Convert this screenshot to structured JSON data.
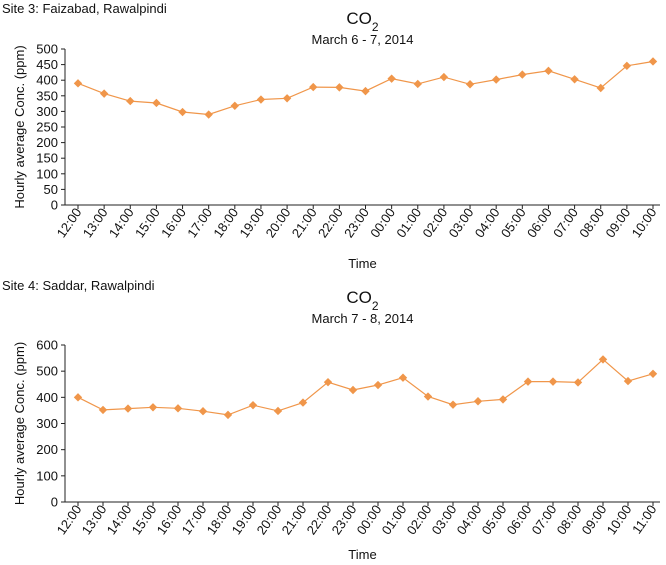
{
  "chart_data": [
    {
      "type": "line",
      "site_label": "Site 3: Faizabad, Rawalpindi",
      "title": "CO",
      "title_subscript": "2",
      "subtitle": "March 6 - 7, 2014",
      "xlabel": "Time",
      "ylabel": "Hourly average Conc. (ppm)",
      "ylim": [
        0,
        500
      ],
      "yticks": [
        0,
        50,
        100,
        150,
        200,
        250,
        300,
        350,
        400,
        450,
        500
      ],
      "grid": false,
      "categories": [
        "12:00",
        "13:00",
        "14:00",
        "15:00",
        "16:00",
        "17:00",
        "18:00",
        "19:00",
        "20:00",
        "21:00",
        "22:00",
        "23:00",
        "00:00",
        "01:00",
        "02:00",
        "03:00",
        "04:00",
        "05:00",
        "06:00",
        "07:00",
        "08:00",
        "09:00",
        "10:00"
      ],
      "series": [
        {
          "values": [
            390,
            357,
            333,
            327,
            298,
            290,
            318,
            338,
            342,
            378,
            377,
            365,
            405,
            388,
            410,
            387,
            402,
            418,
            430,
            403,
            375,
            446,
            460
          ],
          "color": "#F0964A"
        }
      ]
    },
    {
      "type": "line",
      "site_label": "Site 4: Saddar, Rawalpindi",
      "title": "CO",
      "title_subscript": "2",
      "subtitle": "March 7 - 8, 2014",
      "xlabel": "Time",
      "ylabel": "Hourly average Conc. (ppm)",
      "ylim": [
        0,
        600
      ],
      "yticks": [
        0,
        100,
        200,
        300,
        400,
        500,
        600
      ],
      "grid": false,
      "categories": [
        "12:00",
        "13:00",
        "14:00",
        "15:00",
        "16:00",
        "17:00",
        "18:00",
        "19:00",
        "20:00",
        "21:00",
        "22:00",
        "23:00",
        "00:00",
        "01:00",
        "02:00",
        "03:00",
        "04:00",
        "05:00",
        "06:00",
        "07:00",
        "08:00",
        "09:00",
        "10:00",
        "11:00"
      ],
      "series": [
        {
          "values": [
            400,
            352,
            357,
            362,
            358,
            347,
            333,
            370,
            348,
            380,
            458,
            428,
            447,
            475,
            403,
            372,
            385,
            392,
            460,
            460,
            457,
            545,
            462,
            490
          ],
          "color": "#F0964A"
        }
      ]
    }
  ]
}
